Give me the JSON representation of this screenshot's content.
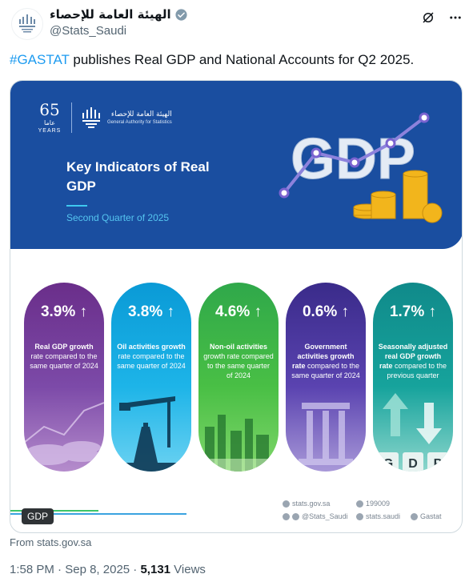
{
  "account": {
    "display_name": "الهيئة العامة للإحصاء",
    "handle": "@Stats_Saudi"
  },
  "tweet": {
    "hashtag": "#GASTAT",
    "text": " publishes Real GDP and National Accounts for Q2 2025."
  },
  "infographic": {
    "logo": {
      "years_number": "65",
      "years_ar": "عاما",
      "years_en": "YEARS",
      "org_ar": "الهيئة العامة للإحصاء",
      "org_en": "General Authority for Statistics"
    },
    "title": "Key Indicators of Real GDP",
    "subtitle": "Second Quarter of 2025",
    "art_word": "GDP",
    "indicators": [
      {
        "value": "3.9%",
        "arrow": "↑",
        "desc_bold": "Real GDP growth",
        "desc_rest": " rate compared to the same quarter of 2024",
        "color": "#6a2e8a"
      },
      {
        "value": "3.8%",
        "arrow": "↑",
        "desc_bold": "Oil activities growth",
        "desc_rest": " rate compared to the same quarter of 2024",
        "color": "#0a9ad6"
      },
      {
        "value": "4.6%",
        "arrow": "↑",
        "desc_bold": "Non-oil activities",
        "desc_rest": " growth rate compared to the same quarter of 2024",
        "color": "#2fa84a"
      },
      {
        "value": "0.6%",
        "arrow": "↑",
        "desc_bold": "Government activities growth rate",
        "desc_rest": " compared to the same quarter of 2024",
        "color": "#3a2b8a"
      },
      {
        "value": "1.7%",
        "arrow": "↑",
        "desc_bold": "Seasonally adjusted real GDP growth rate",
        "desc_rest": " compared to the previous quarter",
        "color": "#108a8a"
      }
    ],
    "pill5_letters": [
      "G",
      "D",
      "P"
    ],
    "media_tag": "GDP",
    "contacts": {
      "website": "stats.gov.sa",
      "phone": "199009",
      "social": "@Stats_Saudi",
      "facebook": "stats.saudi",
      "other": "Gastat"
    }
  },
  "source": "From stats.gov.sa",
  "meta": {
    "time": "1:58 PM",
    "separator": " · ",
    "date": "Sep 8, 2025",
    "views_count": "5,131",
    "views_label": " Views"
  },
  "icons": [
    "logo-icon",
    "verified-badge-icon",
    "grok-icon",
    "more-icon"
  ],
  "colors": {
    "accent": "#1d9bf0",
    "banner": "#1a4ea0"
  }
}
